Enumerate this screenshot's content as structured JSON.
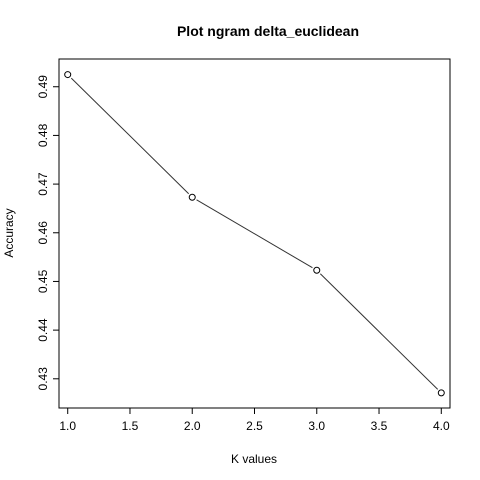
{
  "chart_data": {
    "type": "line",
    "title": "Plot ngram delta_euclidean",
    "xlabel": "K values",
    "ylabel": "Accuracy",
    "x": [
      1.0,
      2.0,
      3.0,
      4.0
    ],
    "y": [
      0.4925,
      0.4673,
      0.4523,
      0.4271
    ],
    "xlim": [
      0.93,
      4.07
    ],
    "ylim": [
      0.424,
      0.4957
    ],
    "xticks": [
      "1.0",
      "1.5",
      "2.0",
      "2.5",
      "3.0",
      "3.5",
      "4.0"
    ],
    "xtick_values": [
      1.0,
      1.5,
      2.0,
      2.5,
      3.0,
      3.5,
      4.0
    ],
    "yticks": [
      "0.43",
      "0.44",
      "0.45",
      "0.46",
      "0.47",
      "0.48",
      "0.49"
    ],
    "ytick_values": [
      0.43,
      0.44,
      0.45,
      0.46,
      0.47,
      0.48,
      0.49
    ],
    "grid": false,
    "legend": "none",
    "line_color": "#333333",
    "marker": "open-circle"
  }
}
